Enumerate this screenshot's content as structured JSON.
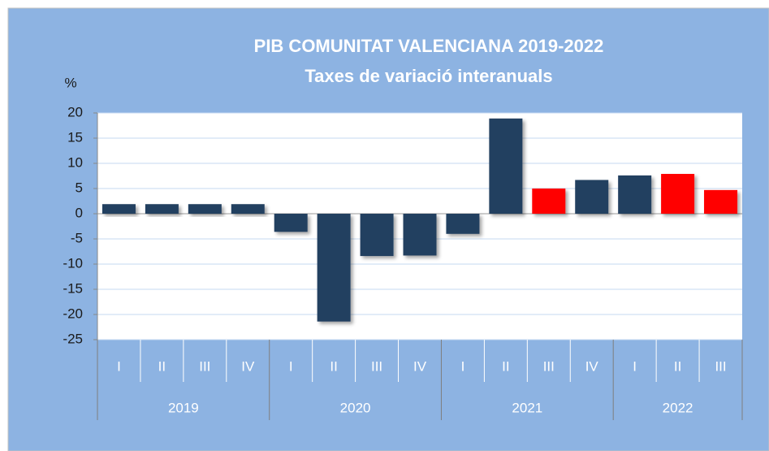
{
  "chart_data": {
    "type": "bar",
    "title": "PIB COMUNITAT VALENCIANA 2019-2022",
    "subtitle": "Taxes de variació interanuals",
    "y_label": "%",
    "groups": [
      {
        "label": "2019",
        "categories": [
          "I",
          "II",
          "III",
          "IV"
        ]
      },
      {
        "label": "2020",
        "categories": [
          "I",
          "II",
          "III",
          "IV"
        ]
      },
      {
        "label": "2021",
        "categories": [
          "I",
          "II",
          "III",
          "IV"
        ]
      },
      {
        "label": "2022",
        "categories": [
          "I",
          "II",
          "III"
        ]
      }
    ],
    "values": [
      1.9,
      1.9,
      1.9,
      1.9,
      -3.6,
      -21.4,
      -8.4,
      -8.3,
      -4.0,
      18.9,
      5.0,
      6.7,
      7.6,
      7.9,
      4.7
    ],
    "colors": [
      "#243f60",
      "#243f60",
      "#243f60",
      "#243f60",
      "#243f60",
      "#243f60",
      "#243f60",
      "#243f60",
      "#243f60",
      "#243f60",
      "#ff0000",
      "#243f60",
      "#243f60",
      "#ff0000",
      "#ff0000"
    ],
    "ylim": [
      -25,
      20
    ],
    "yticks": [
      -25,
      -20,
      -15,
      -10,
      -5,
      0,
      5,
      10,
      15,
      20
    ],
    "grid": true
  }
}
